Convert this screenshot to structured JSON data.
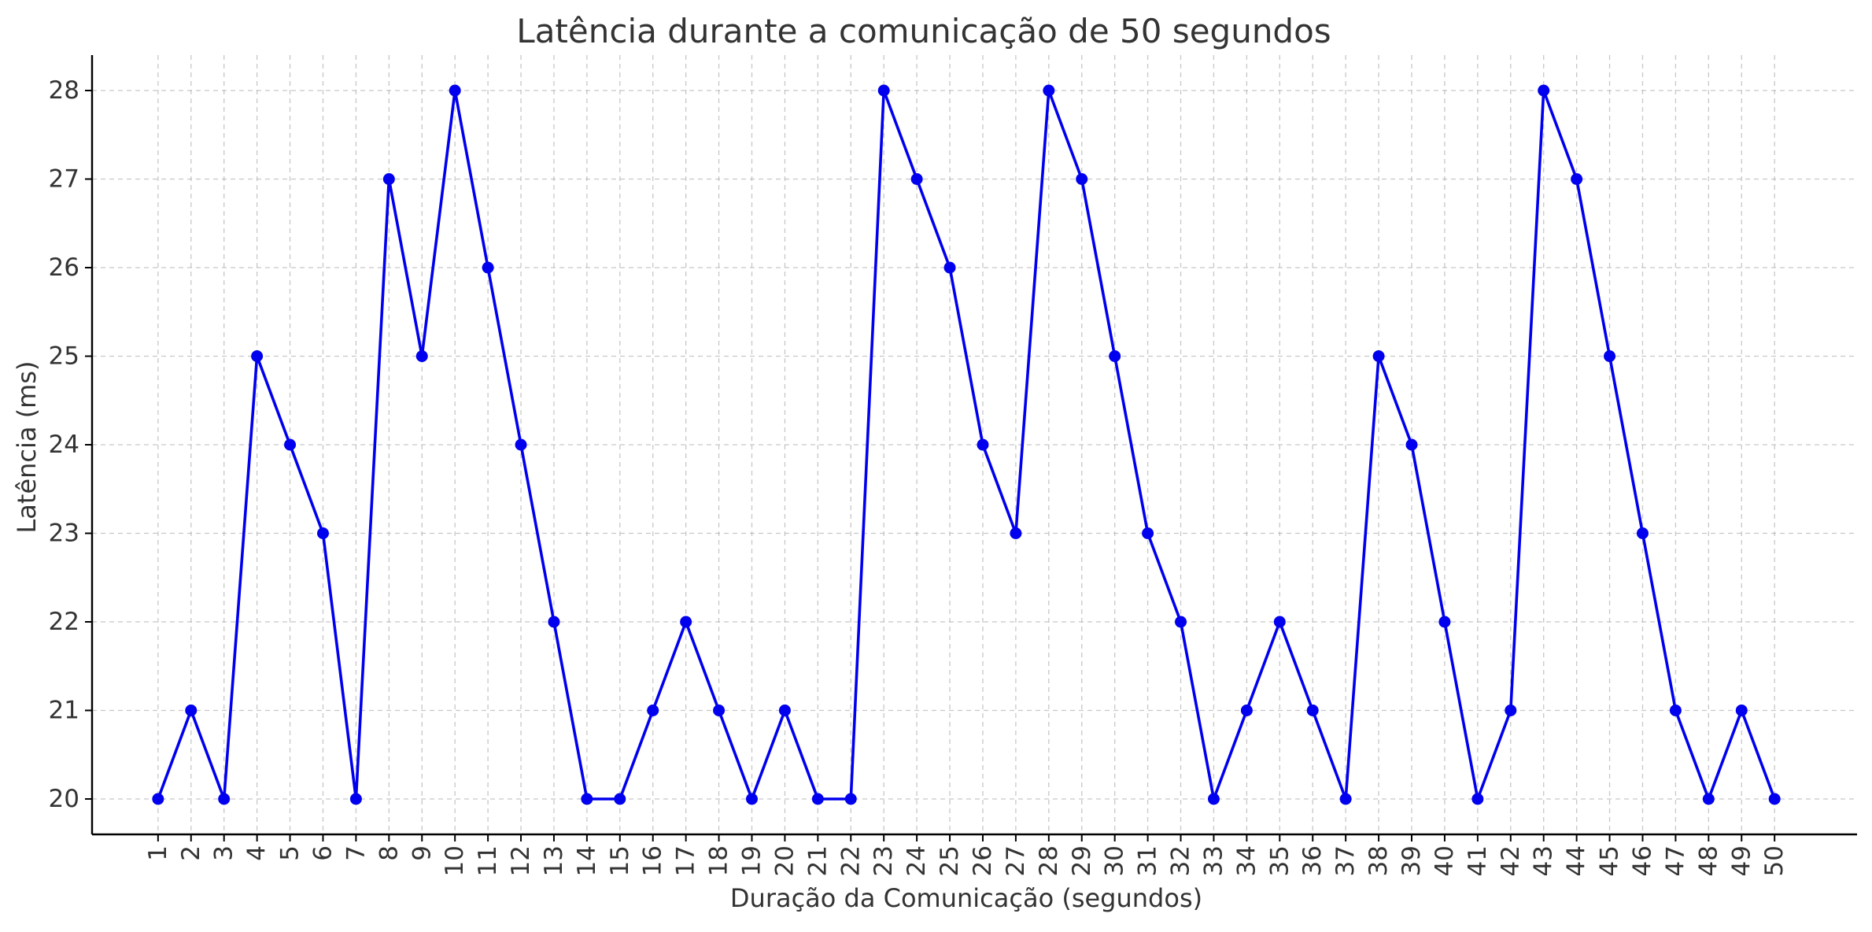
{
  "chart_data": {
    "type": "line",
    "title": "Latência durante a comunicação de 50 segundos",
    "xlabel": "Duração da Comunicação (segundos)",
    "ylabel": "Latência (ms)",
    "x": [
      1,
      2,
      3,
      4,
      5,
      6,
      7,
      8,
      9,
      10,
      11,
      12,
      13,
      14,
      15,
      16,
      17,
      18,
      19,
      20,
      21,
      22,
      23,
      24,
      25,
      26,
      27,
      28,
      29,
      30,
      31,
      32,
      33,
      34,
      35,
      36,
      37,
      38,
      39,
      40,
      41,
      42,
      43,
      44,
      45,
      46,
      47,
      48,
      49,
      50
    ],
    "series": [
      {
        "values": [
          20,
          21,
          20,
          25,
          24,
          23,
          20,
          27,
          25,
          28,
          26,
          24,
          22,
          20,
          20,
          21,
          22,
          21,
          20,
          21,
          20,
          20,
          28,
          27,
          26,
          24,
          23,
          28,
          27,
          25,
          23,
          22,
          20,
          21,
          22,
          21,
          20,
          25,
          24,
          22,
          20,
          21,
          28,
          27,
          25,
          23,
          21,
          20,
          21,
          20
        ],
        "color": "#0000ee",
        "marker": "circle"
      }
    ],
    "yticks": [
      20,
      21,
      22,
      23,
      24,
      25,
      26,
      27,
      28
    ],
    "xlim": [
      -1.0,
      52.5
    ],
    "ylim": [
      19.6,
      28.4
    ],
    "grid": true,
    "x_tick_rotation": "vertical"
  }
}
